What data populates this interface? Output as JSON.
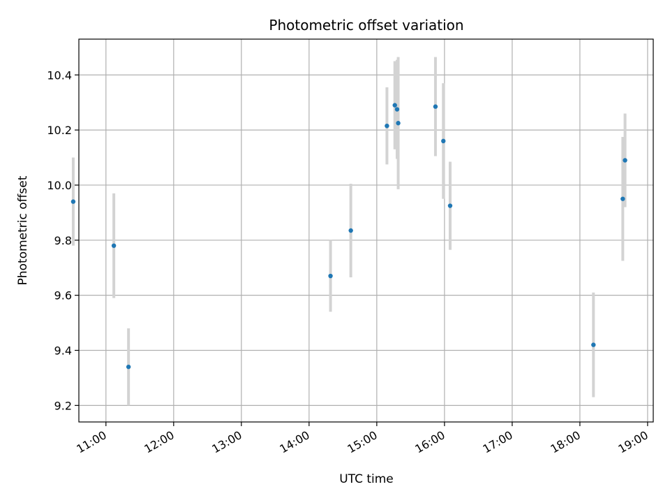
{
  "chart_data": {
    "type": "scatter",
    "title": "Photometric offset variation",
    "xlabel": "UTC time",
    "ylabel": "Photometric offset",
    "xlim": [
      "10:36",
      "19:05"
    ],
    "ylim": [
      9.14,
      10.53
    ],
    "x_ticks": [
      "11:00",
      "12:00",
      "13:00",
      "14:00",
      "15:00",
      "16:00",
      "17:00",
      "18:00",
      "19:00"
    ],
    "y_ticks": [
      9.2,
      9.4,
      9.6,
      9.8,
      10.0,
      10.2,
      10.4
    ],
    "y_tick_labels": [
      "9.2",
      "9.4",
      "9.6",
      "9.8",
      "10.0",
      "10.2",
      "10.4"
    ],
    "grid": true,
    "marker_color": "#1f77b4",
    "errorbar_color": "#d3d3d3",
    "series": [
      {
        "points": [
          {
            "x": "10:31",
            "y": 9.94,
            "err": 0.16
          },
          {
            "x": "11:07",
            "y": 9.78,
            "err": 0.19
          },
          {
            "x": "11:20",
            "y": 9.34,
            "err": 0.14
          },
          {
            "x": "14:19",
            "y": 9.67,
            "err": 0.13
          },
          {
            "x": "14:37",
            "y": 9.835,
            "err": 0.17
          },
          {
            "x": "15:09",
            "y": 10.215,
            "err": 0.14
          },
          {
            "x": "15:16",
            "y": 10.29,
            "err": 0.16
          },
          {
            "x": "15:18",
            "y": 10.275,
            "err": 0.18
          },
          {
            "x": "15:19",
            "y": 10.225,
            "err": 0.24
          },
          {
            "x": "15:52",
            "y": 10.285,
            "err": 0.18
          },
          {
            "x": "15:59",
            "y": 10.16,
            "err": 0.21
          },
          {
            "x": "16:05",
            "y": 9.925,
            "err": 0.16
          },
          {
            "x": "18:12",
            "y": 9.42,
            "err": 0.19
          },
          {
            "x": "18:38",
            "y": 9.95,
            "err": 0.225
          },
          {
            "x": "18:40",
            "y": 10.09,
            "err": 0.17
          }
        ]
      }
    ]
  }
}
